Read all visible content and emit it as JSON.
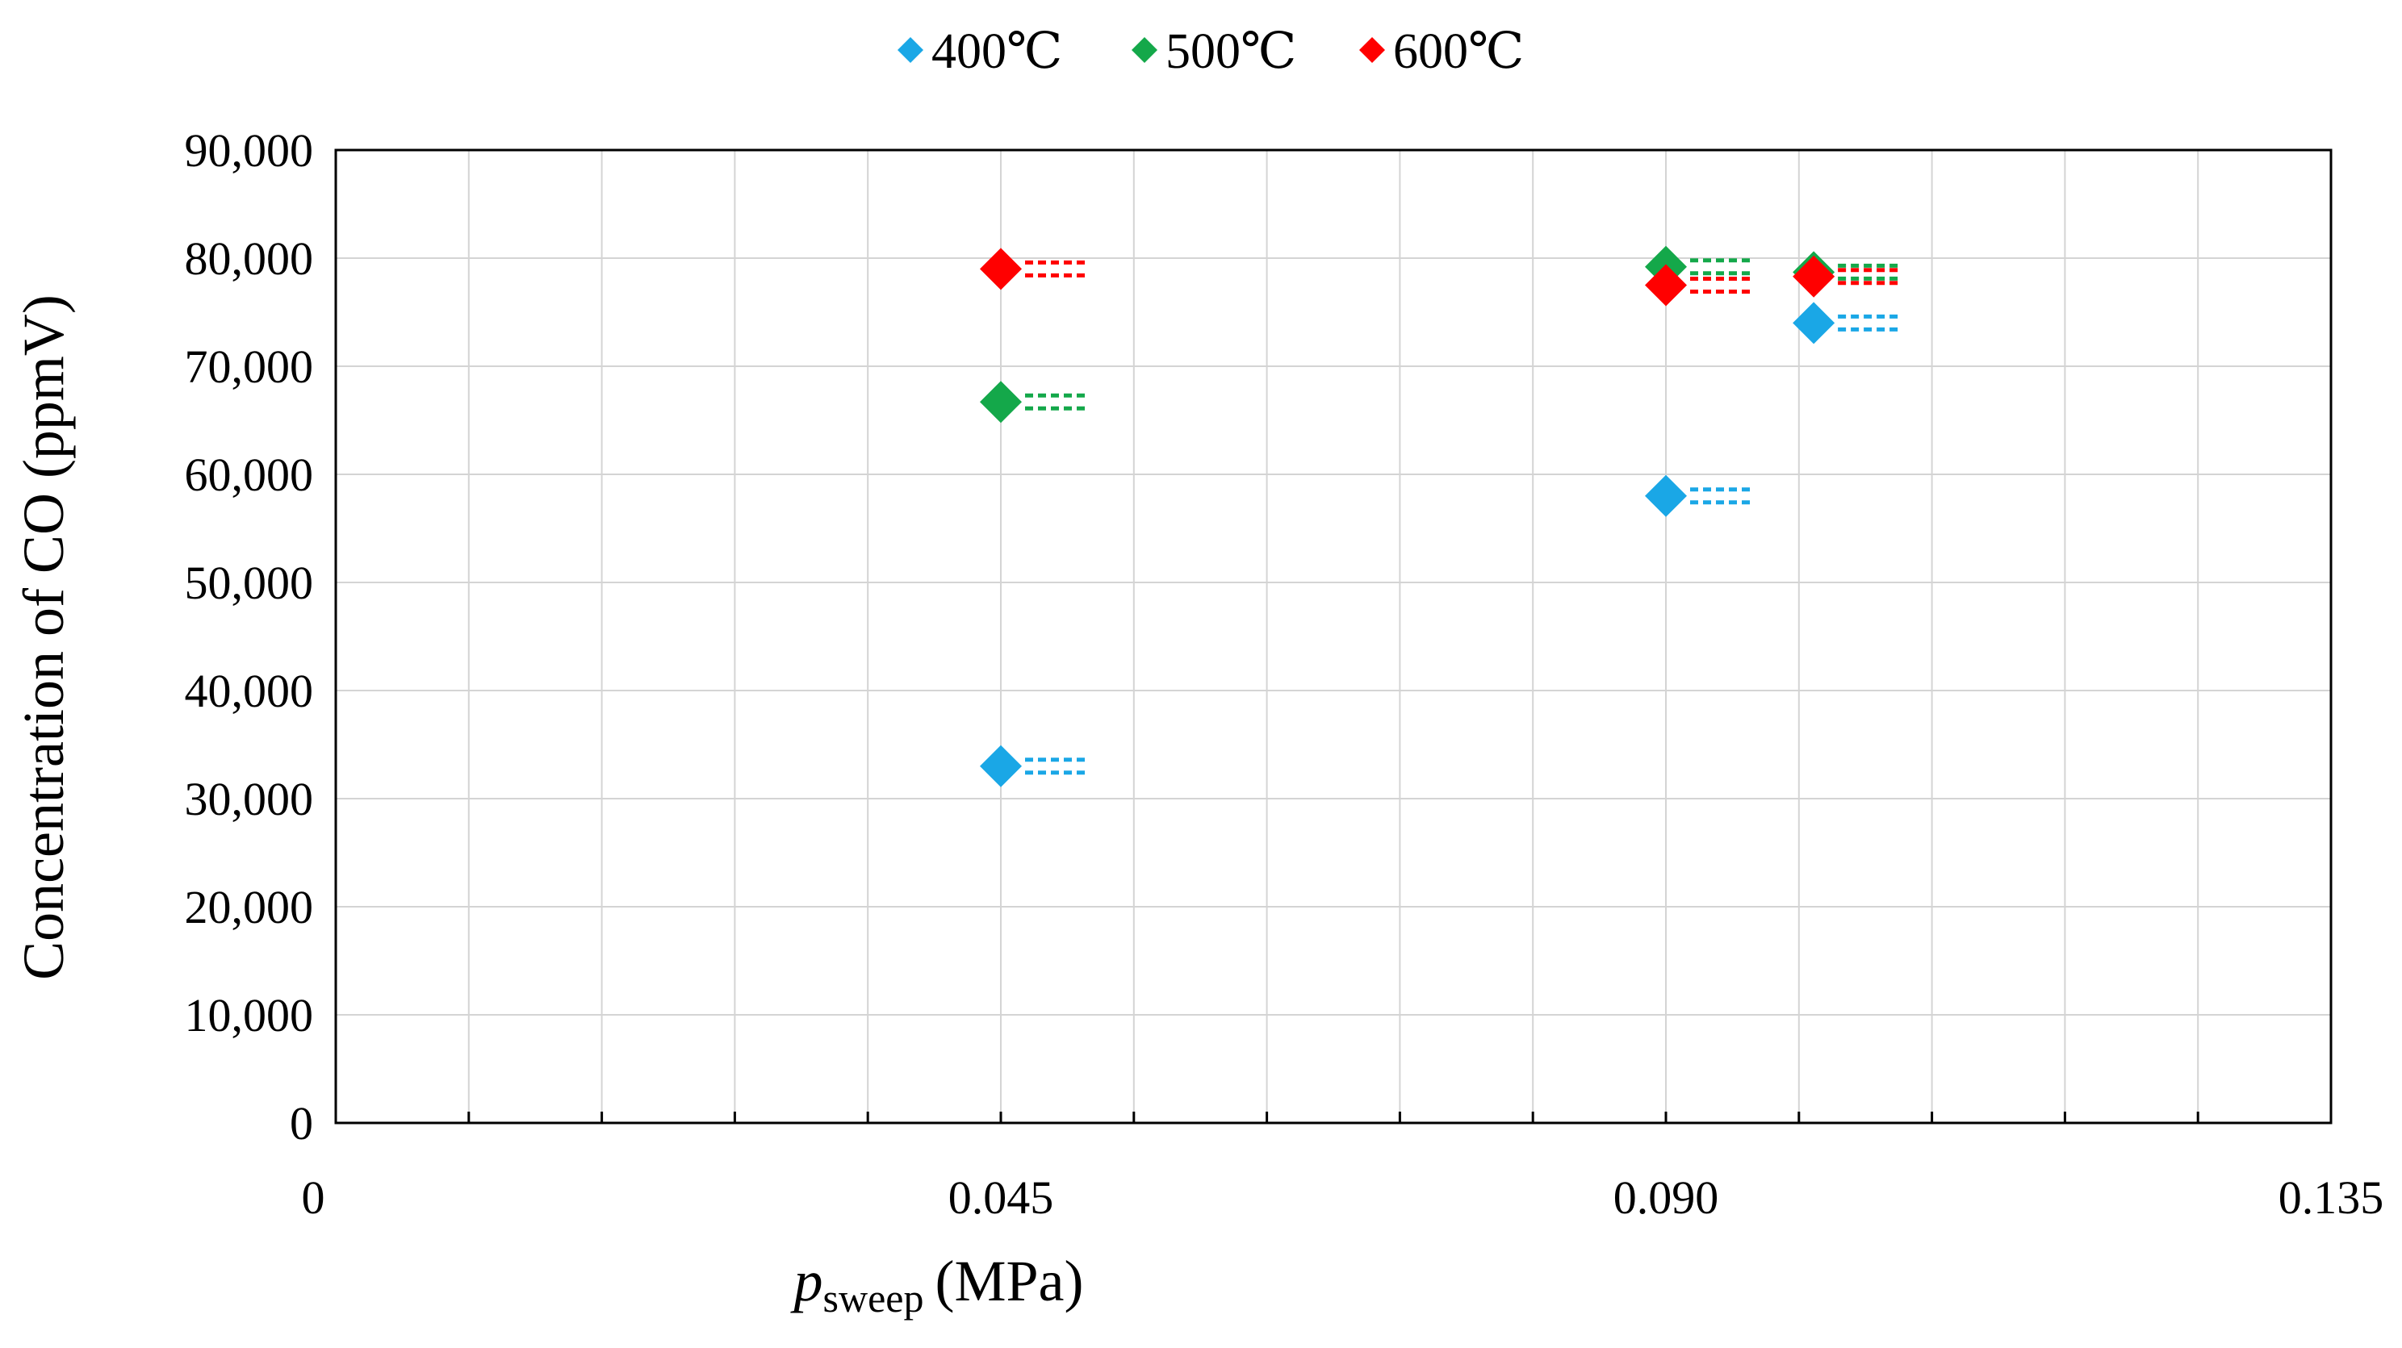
{
  "chart_data": {
    "type": "scatter",
    "title": "",
    "xlabel": "p",
    "xlabel_subscript": "sweep",
    "xlabel_unit": "(MPa)",
    "ylabel": "Concentration of CO (ppmV)",
    "xlim": [
      0,
      0.135
    ],
    "ylim": [
      0,
      90000
    ],
    "x_ticks": [
      {
        "value": 0,
        "label": "0"
      },
      {
        "value": 0.045,
        "label": "0.045"
      },
      {
        "value": 0.09,
        "label": "0.090"
      },
      {
        "value": 0.135,
        "label": "0.135"
      }
    ],
    "x_minor_step": 0.009,
    "y_ticks": [
      {
        "value": 0,
        "label": "0"
      },
      {
        "value": 10000,
        "label": "10,000"
      },
      {
        "value": 20000,
        "label": "20,000"
      },
      {
        "value": 30000,
        "label": "30,000"
      },
      {
        "value": 40000,
        "label": "40,000"
      },
      {
        "value": 50000,
        "label": "50,000"
      },
      {
        "value": 60000,
        "label": "60,000"
      },
      {
        "value": 70000,
        "label": "70,000"
      },
      {
        "value": 80000,
        "label": "80,000"
      },
      {
        "value": 90000,
        "label": "90,000"
      }
    ],
    "grid": true,
    "legend_position": "top-center",
    "marker": "diamond",
    "series": [
      {
        "name": "400℃",
        "color": "#1aa7e6",
        "points": [
          {
            "x": 0.045,
            "y": 33000
          },
          {
            "x": 0.09,
            "y": 58000
          },
          {
            "x": 0.1,
            "y": 74000
          }
        ]
      },
      {
        "name": "500℃",
        "color": "#14a84a",
        "points": [
          {
            "x": 0.045,
            "y": 66700
          },
          {
            "x": 0.09,
            "y": 79200
          },
          {
            "x": 0.1,
            "y": 78700
          }
        ]
      },
      {
        "name": "600℃",
        "color": "#ff0000",
        "points": [
          {
            "x": 0.045,
            "y": 79000
          },
          {
            "x": 0.09,
            "y": 77500
          },
          {
            "x": 0.1,
            "y": 78300
          }
        ]
      }
    ]
  }
}
